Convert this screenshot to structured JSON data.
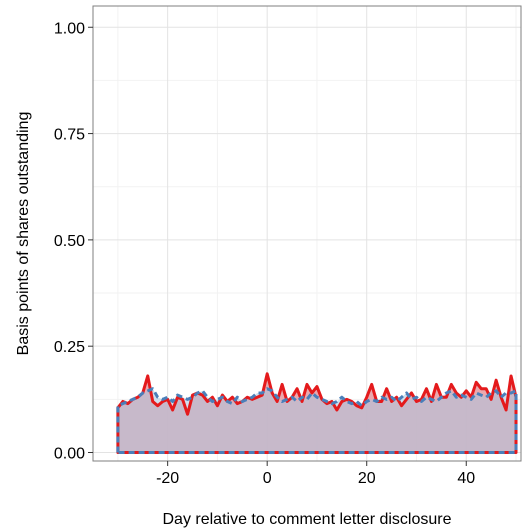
{
  "chart_data": {
    "type": "area",
    "title": "",
    "xlabel": "Day relative to comment letter disclosure",
    "ylabel": "Basis points of shares outstanding",
    "xlim": [
      -35,
      51
    ],
    "ylim": [
      -0.02,
      1.05
    ],
    "x_ticks": [
      -20,
      0,
      20,
      40
    ],
    "x_tick_labels": [
      "-20",
      "0",
      "20",
      "40"
    ],
    "y_ticks": [
      0.0,
      0.25,
      0.5,
      0.75,
      1.0
    ],
    "y_tick_labels": [
      "0.00",
      "0.25",
      "0.50",
      "0.75",
      "1.00"
    ],
    "grid": true,
    "legend": "none",
    "x": [
      -30,
      -29,
      -28,
      -27,
      -26,
      -25,
      -24,
      -23,
      -22,
      -21,
      -20,
      -19,
      -18,
      -17,
      -16,
      -15,
      -14,
      -13,
      -12,
      -11,
      -10,
      -9,
      -8,
      -7,
      -6,
      -5,
      -4,
      -3,
      -2,
      -1,
      0,
      1,
      2,
      3,
      4,
      5,
      6,
      7,
      8,
      9,
      10,
      11,
      12,
      13,
      14,
      15,
      16,
      17,
      18,
      19,
      20,
      21,
      22,
      23,
      24,
      25,
      26,
      27,
      28,
      29,
      30,
      31,
      32,
      33,
      34,
      35,
      36,
      37,
      38,
      39,
      40,
      41,
      42,
      43,
      44,
      45,
      46,
      47,
      48,
      49,
      50
    ],
    "series": [
      {
        "color": "#e41a1c",
        "fill": "#e8a0a6",
        "line_style": "solid",
        "values": [
          0.105,
          0.12,
          0.115,
          0.125,
          0.13,
          0.14,
          0.18,
          0.12,
          0.11,
          0.12,
          0.125,
          0.1,
          0.13,
          0.125,
          0.09,
          0.135,
          0.14,
          0.135,
          0.12,
          0.13,
          0.11,
          0.135,
          0.12,
          0.13,
          0.115,
          0.12,
          0.13,
          0.125,
          0.13,
          0.135,
          0.185,
          0.14,
          0.12,
          0.16,
          0.12,
          0.13,
          0.15,
          0.12,
          0.16,
          0.14,
          0.155,
          0.125,
          0.115,
          0.12,
          0.1,
          0.12,
          0.125,
          0.12,
          0.11,
          0.105,
          0.13,
          0.16,
          0.12,
          0.12,
          0.15,
          0.12,
          0.13,
          0.11,
          0.125,
          0.14,
          0.12,
          0.125,
          0.15,
          0.12,
          0.16,
          0.13,
          0.13,
          0.16,
          0.14,
          0.13,
          0.145,
          0.13,
          0.165,
          0.15,
          0.15,
          0.125,
          0.17,
          0.13,
          0.1,
          0.18,
          0.13
        ]
      },
      {
        "color": "#4a7fba",
        "fill": "#a9c6e0",
        "line_style": "dashed",
        "values": [
          0.11,
          0.115,
          0.12,
          0.125,
          0.13,
          0.14,
          0.145,
          0.15,
          0.13,
          0.125,
          0.13,
          0.12,
          0.135,
          0.13,
          0.125,
          0.13,
          0.14,
          0.145,
          0.13,
          0.12,
          0.125,
          0.13,
          0.12,
          0.115,
          0.13,
          0.12,
          0.125,
          0.13,
          0.14,
          0.14,
          0.15,
          0.145,
          0.13,
          0.12,
          0.125,
          0.13,
          0.12,
          0.13,
          0.125,
          0.14,
          0.13,
          0.125,
          0.12,
          0.115,
          0.12,
          0.13,
          0.12,
          0.115,
          0.12,
          0.11,
          0.12,
          0.125,
          0.12,
          0.13,
          0.125,
          0.13,
          0.12,
          0.13,
          0.14,
          0.125,
          0.13,
          0.12,
          0.13,
          0.125,
          0.12,
          0.13,
          0.14,
          0.145,
          0.13,
          0.135,
          0.13,
          0.125,
          0.14,
          0.135,
          0.13,
          0.14,
          0.145,
          0.13,
          0.14,
          0.14,
          0.145
        ]
      }
    ]
  }
}
